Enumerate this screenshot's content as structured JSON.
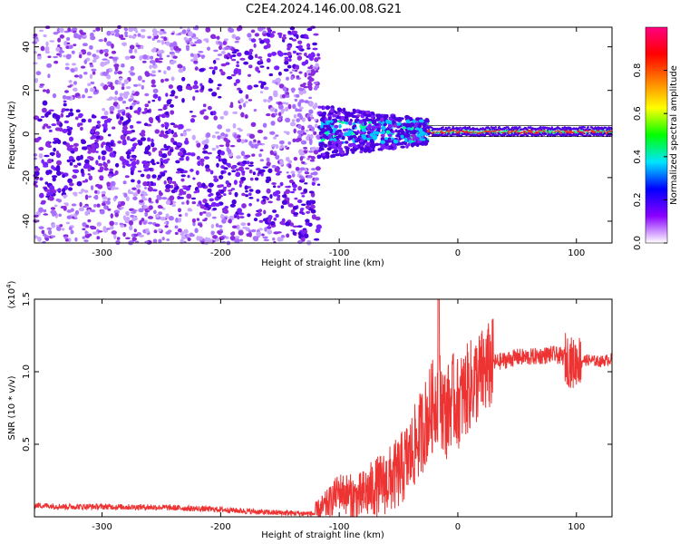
{
  "title": "C2E4.2024.146.00.08.G21",
  "chart_data": [
    {
      "type": "heatmap",
      "xlabel": "Height of straight line (km)",
      "ylabel": "Frequency (Hz)",
      "xlim": [
        -357,
        130
      ],
      "ylim": [
        -50,
        49
      ],
      "xticks": [
        -300,
        -200,
        -100,
        0,
        100
      ],
      "yticks": [
        -40,
        -20,
        0,
        20,
        40
      ],
      "colorbar": {
        "label": "Normalized spectral amplitude",
        "range": [
          0,
          1
        ],
        "ticks": [
          "0.0",
          "0.2",
          "0.4",
          "0.6",
          "0.8"
        ],
        "tick_values": [
          0.0,
          0.2,
          0.4,
          0.6,
          0.8
        ],
        "colors": [
          "#ffffff",
          "#8a00ff",
          "#0000ff",
          "#00e5ff",
          "#00ff00",
          "#ffff00",
          "#ff8000",
          "#ff0000",
          "#ff0080"
        ]
      },
      "regions": [
        {
          "x": [
            -357,
            -117
          ],
          "freq_range": [
            -50,
            49
          ],
          "amplitude": 0.1,
          "note": "broadband purple scatter"
        },
        {
          "x": [
            -117,
            -25
          ],
          "freq_range": [
            -15,
            12
          ],
          "amplitude": 0.3,
          "note": "band with cyan spots"
        },
        {
          "x": [
            -25,
            130
          ],
          "freq_range": [
            -2,
            4
          ],
          "amplitude": 0.9,
          "note": "narrow red line near 1 Hz"
        }
      ]
    },
    {
      "type": "line",
      "xlabel": "Height of straight line (km)",
      "ylabel": "SNR (10 * v/v)",
      "y_scale_label": "(x10",
      "y_scale_exp": "4",
      "xlim": [
        -357,
        130
      ],
      "ylim": [
        0,
        1.5
      ],
      "xticks": [
        -300,
        -200,
        -100,
        0,
        100
      ],
      "yticks": [
        0.5,
        1.0,
        1.5
      ],
      "ytick_labels": [
        "0.5",
        "1.0",
        "1.5"
      ],
      "color": "#ee3333",
      "series": [
        {
          "x": [
            -357,
            -330,
            -300,
            -250,
            -200,
            -160,
            -120,
            -108,
            -100,
            -92,
            -85,
            -78,
            -70,
            -60,
            -50,
            -40,
            -30,
            -22,
            -16,
            -10,
            -5,
            0,
            10,
            20,
            30,
            40,
            50,
            60,
            70,
            80,
            90,
            98,
            100,
            110,
            120,
            130
          ],
          "y": [
            0.08,
            0.07,
            0.07,
            0.065,
            0.05,
            0.03,
            0.02,
            0.1,
            0.18,
            0.15,
            0.12,
            0.16,
            0.2,
            0.24,
            0.3,
            0.42,
            0.6,
            0.75,
            0.85,
            0.7,
            0.82,
            0.78,
            0.9,
            0.98,
            1.06,
            1.08,
            1.1,
            1.1,
            1.11,
            1.12,
            1.1,
            1.05,
            1.08,
            1.08,
            1.07,
            1.09
          ]
        }
      ]
    }
  ]
}
